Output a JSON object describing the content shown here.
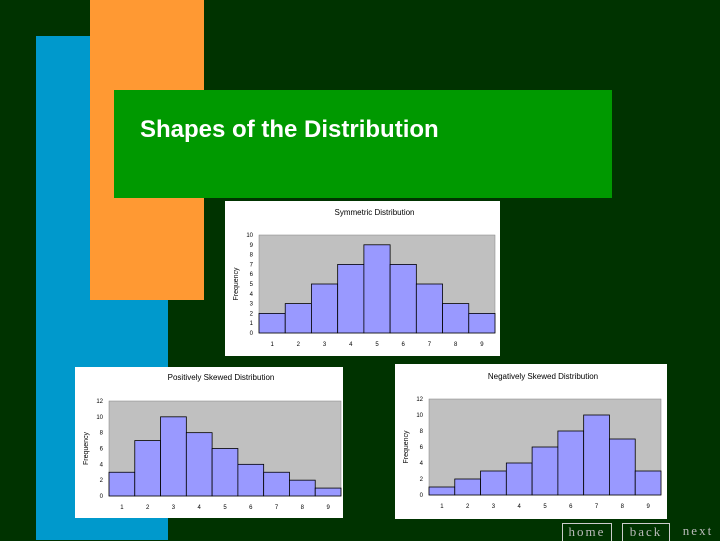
{
  "slide": {
    "title": "Shapes of the Distribution"
  },
  "nav": {
    "home": "home",
    "back": "back",
    "next": "next"
  },
  "colors": {
    "bar": "#9999ff",
    "plot_bg": "#c0c0c0",
    "background": "#003300",
    "accent_blue": "#0099cc",
    "accent_orange": "#ff9933",
    "title_band": "#009900"
  },
  "chart_data": [
    {
      "type": "bar",
      "title": "Symmetric Distribution",
      "ylabel": "Frequency",
      "xlabel": "",
      "categories": [
        "1",
        "2",
        "3",
        "4",
        "5",
        "6",
        "7",
        "8",
        "9"
      ],
      "values": [
        2,
        3,
        5,
        7,
        9,
        7,
        5,
        3,
        2
      ],
      "ylim": [
        0,
        10
      ],
      "yticks": [
        "0",
        "1",
        "2",
        "3",
        "4",
        "5",
        "6",
        "7",
        "8",
        "9",
        "10"
      ],
      "grid": false
    },
    {
      "type": "bar",
      "title": "Positively Skewed Distribution",
      "ylabel": "Frequency",
      "xlabel": "",
      "categories": [
        "1",
        "2",
        "3",
        "4",
        "5",
        "6",
        "7",
        "8",
        "9"
      ],
      "values": [
        3,
        7,
        10,
        8,
        6,
        4,
        3,
        2,
        1
      ],
      "ylim": [
        0,
        12
      ],
      "yticks": [
        "0",
        "2",
        "4",
        "6",
        "8",
        "10",
        "12"
      ],
      "grid": false
    },
    {
      "type": "bar",
      "title": "Negatively Skewed Distribution",
      "ylabel": "Frequency",
      "xlabel": "",
      "categories": [
        "1",
        "2",
        "3",
        "4",
        "5",
        "6",
        "7",
        "8",
        "9"
      ],
      "values": [
        1,
        2,
        3,
        4,
        6,
        8,
        10,
        7,
        3
      ],
      "ylim": [
        0,
        12
      ],
      "yticks": [
        "0",
        "2",
        "4",
        "6",
        "8",
        "10",
        "12"
      ],
      "grid": false
    }
  ]
}
